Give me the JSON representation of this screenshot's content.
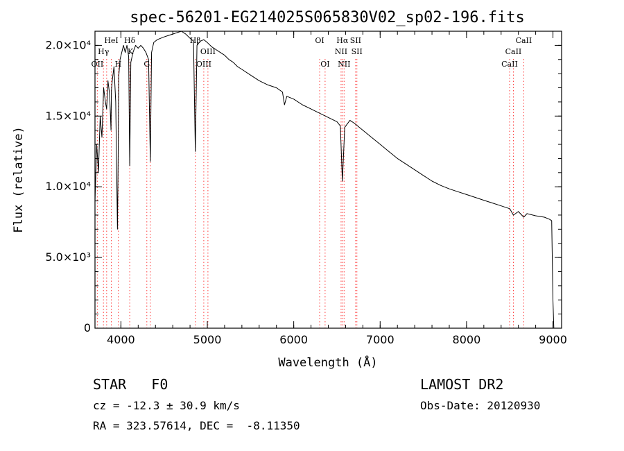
{
  "chart_data": {
    "type": "line",
    "title": "spec-56201-EG214025S065830V02_sp02-196.fits",
    "xlabel": "Wavelength (Å)",
    "ylabel": "Flux (relative)",
    "xlim": [
      3700,
      9100
    ],
    "ylim": [
      0,
      21000
    ],
    "xticks": [
      {
        "value": 4000,
        "label": "4000"
      },
      {
        "value": 5000,
        "label": "5000"
      },
      {
        "value": 6000,
        "label": "6000"
      },
      {
        "value": 7000,
        "label": "7000"
      },
      {
        "value": 8000,
        "label": "8000"
      },
      {
        "value": 9000,
        "label": "9000"
      }
    ],
    "yticks": [
      {
        "value": 0,
        "label": "0"
      },
      {
        "value": 5000,
        "label": "5.0×10³"
      },
      {
        "value": 10000,
        "label": "1.0×10⁴"
      },
      {
        "value": 15000,
        "label": "1.5×10⁴"
      },
      {
        "value": 20000,
        "label": "2.0×10⁴"
      }
    ],
    "grid": false,
    "series": [
      {
        "x": [
          3700,
          3720,
          3740,
          3760,
          3780,
          3800,
          3820,
          3835,
          3850,
          3870,
          3885,
          3890,
          3900,
          3920,
          3940,
          3960,
          3968,
          3975,
          3990,
          4010,
          4030,
          4050,
          4070,
          4090,
          4102,
          4115,
          4140,
          4170,
          4200,
          4230,
          4260,
          4290,
          4320,
          4340,
          4355,
          4380,
          4420,
          4460,
          4500,
          4550,
          4600,
          4650,
          4700,
          4750,
          4800,
          4840,
          4861,
          4880,
          4920,
          4960,
          5000,
          5050,
          5100,
          5150,
          5200,
          5250,
          5300,
          5350,
          5400,
          5500,
          5600,
          5700,
          5800,
          5870,
          5893,
          5920,
          6000,
          6100,
          6200,
          6300,
          6400,
          6500,
          6540,
          6563,
          6590,
          6650,
          6700,
          6800,
          6900,
          7000,
          7100,
          7200,
          7300,
          7400,
          7500,
          7600,
          7700,
          7800,
          7900,
          8000,
          8100,
          8200,
          8300,
          8400,
          8500,
          8542,
          8600,
          8662,
          8700,
          8800,
          8900,
          8960,
          8985,
          9000,
          9010
        ],
        "y": [
          9000,
          13000,
          11000,
          15000,
          13500,
          17000,
          16000,
          15500,
          17500,
          16500,
          14000,
          16800,
          17500,
          18500,
          16000,
          7000,
          12000,
          17800,
          19000,
          19500,
          20000,
          19500,
          20000,
          19200,
          11500,
          18800,
          19500,
          20000,
          19800,
          20000,
          19800,
          19500,
          19000,
          11800,
          19500,
          20200,
          20400,
          20500,
          20600,
          20700,
          20800,
          20900,
          21000,
          20800,
          20500,
          20300,
          12500,
          20000,
          20300,
          20400,
          20200,
          19900,
          19700,
          19500,
          19300,
          19000,
          18800,
          18500,
          18300,
          17900,
          17500,
          17200,
          17000,
          16700,
          15800,
          16400,
          16200,
          15800,
          15500,
          15200,
          14900,
          14600,
          14300,
          10400,
          14200,
          14700,
          14500,
          14000,
          13500,
          13000,
          12500,
          12000,
          11600,
          11200,
          10800,
          10400,
          10100,
          9850,
          9650,
          9450,
          9250,
          9050,
          8850,
          8650,
          8450,
          8000,
          8250,
          7850,
          8100,
          7950,
          7850,
          7700,
          7600,
          2000,
          0
        ]
      }
    ],
    "annotations": [
      {
        "label": "OII",
        "x": 3727,
        "row": 3
      },
      {
        "label": "Hγ",
        "x": 3798,
        "row": 2
      },
      {
        "label": "HeI",
        "x": 3889,
        "row": 1
      },
      {
        "label": "H",
        "x": 3968,
        "row": 3
      },
      {
        "label": "Hδ",
        "x": 4102,
        "row": 1
      },
      {
        "label": "K",
        "x": 4110,
        "row": 2
      },
      {
        "label": "G",
        "x": 4300,
        "row": 3
      },
      {
        "label": "Hβ",
        "x": 4861,
        "row": 1
      },
      {
        "label": "OIII",
        "x": 4959,
        "row": 3
      },
      {
        "label": "OIII",
        "x": 5007,
        "row": 2
      },
      {
        "label": "OI",
        "x": 6300,
        "row": 1
      },
      {
        "label": "OI",
        "x": 6363,
        "row": 3
      },
      {
        "label": "Hα",
        "x": 6563,
        "row": 1
      },
      {
        "label": "NII",
        "x": 6548,
        "row": 2
      },
      {
        "label": "NII",
        "x": 6583,
        "row": 3
      },
      {
        "label": "SII",
        "x": 6716,
        "row": 1
      },
      {
        "label": "SII",
        "x": 6731,
        "row": 2
      },
      {
        "label": "CaII",
        "x": 8498,
        "row": 3
      },
      {
        "label": "CaII",
        "x": 8542,
        "row": 2
      },
      {
        "label": "CaII",
        "x": 8662,
        "row": 1
      }
    ],
    "line_markers": [
      3727,
      3798,
      3835,
      3889,
      3970,
      4102,
      4300,
      4340,
      4861,
      4959,
      5007,
      6300,
      6363,
      6548,
      6563,
      6583,
      6716,
      6731,
      8498,
      8542,
      8662
    ]
  },
  "info": {
    "class_line": "STAR   F0",
    "cz_line": "cz = -12.3 ± 30.9 km/s",
    "radec_line": "RA = 323.57614, DEC =  -8.11350",
    "survey": "LAMOST DR2",
    "obs_date": "Obs-Date: 20120930"
  },
  "colors": {
    "axes": "#000000",
    "spectrum": "#000000",
    "markers": "#ff3b3b"
  }
}
